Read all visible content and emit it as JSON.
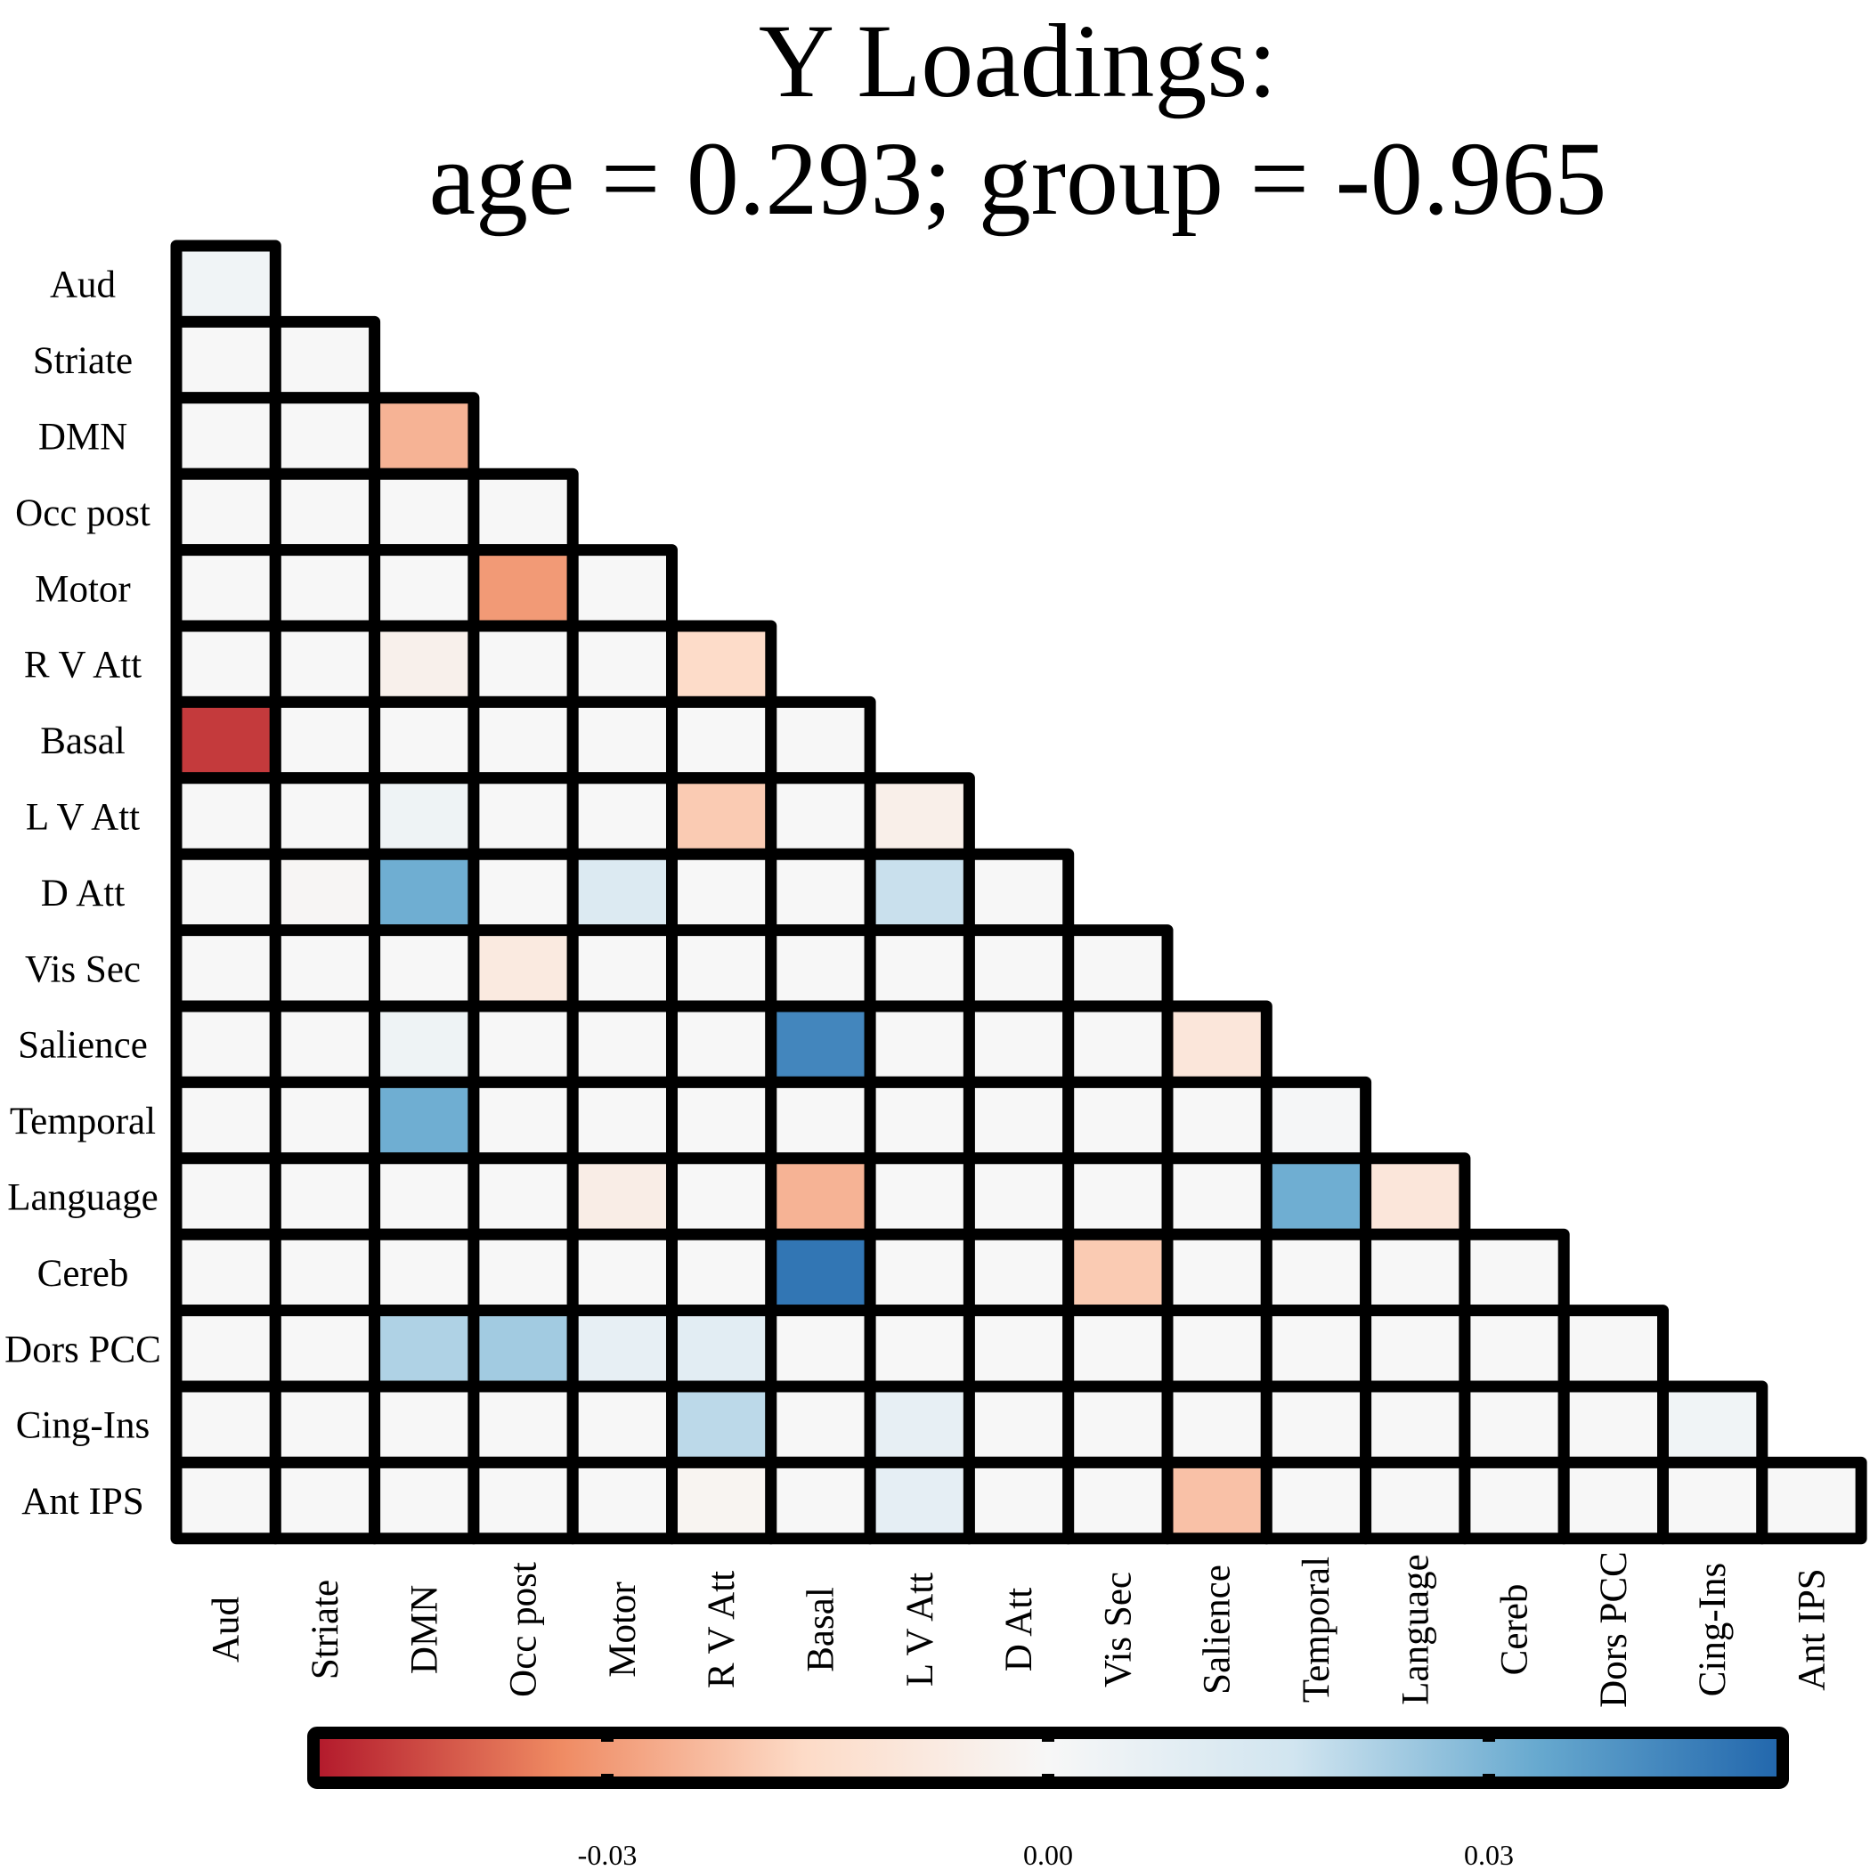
{
  "chart_data": {
    "type": "heatmap",
    "title": "Y Loadings:",
    "subtitle": "age = 0.293; group = -0.965",
    "networks": [
      "Aud",
      "Striate",
      "DMN",
      "Occ post",
      "Motor",
      "R V Att",
      "Basal",
      "L V Att",
      "D Att",
      "Vis Sec",
      "Salience",
      "Temporal",
      "Language",
      "Cereb",
      "Dors PCC",
      "Cing-Ins",
      "Ant IPS"
    ],
    "values": [
      [
        0.003
      ],
      [
        0,
        0
      ],
      [
        0,
        0,
        -0.025
      ],
      [
        0,
        0,
        0,
        0
      ],
      [
        0,
        0,
        0,
        -0.03,
        0
      ],
      [
        0,
        0,
        -0.004,
        0,
        0,
        -0.016
      ],
      [
        -0.045,
        0,
        0,
        0,
        0,
        0,
        0
      ],
      [
        0,
        0,
        0.004,
        0,
        0,
        -0.02,
        0,
        -0.005
      ],
      [
        0,
        -0.001,
        0.032,
        0,
        0.012,
        0,
        0,
        0.018,
        0
      ],
      [
        0,
        0,
        0,
        -0.008,
        0,
        0,
        0,
        0,
        0,
        0
      ],
      [
        0,
        0,
        0.004,
        0,
        0,
        0,
        0.042,
        0,
        0,
        0,
        -0.01
      ],
      [
        0,
        0,
        0.032,
        0,
        0,
        0,
        0,
        0,
        0,
        0,
        0,
        0.001
      ],
      [
        0,
        0,
        0,
        0,
        -0.006,
        0,
        -0.025,
        0,
        0,
        0,
        0,
        0.032,
        -0.01
      ],
      [
        0,
        0,
        0,
        0,
        0,
        0,
        0.046,
        0,
        0,
        -0.02,
        0,
        0,
        0,
        0
      ],
      [
        0,
        0,
        0.022,
        0.024,
        0.007,
        0.009,
        0,
        0,
        0,
        0,
        0,
        0,
        0,
        0,
        0
      ],
      [
        0,
        0,
        0,
        0,
        0,
        0.02,
        0,
        0.007,
        0,
        0,
        0,
        0,
        0,
        0,
        0,
        0.003
      ],
      [
        0,
        0,
        0,
        0,
        0,
        -0.002,
        0,
        0.008,
        0,
        0,
        -0.022,
        0,
        0,
        0,
        0,
        0,
        0
      ]
    ],
    "colorbar": {
      "ticks": [
        -0.03,
        0,
        0.03
      ],
      "tick_labels": [
        "-0.03",
        "0.00",
        "0.03"
      ],
      "range": [
        -0.05,
        0.05
      ],
      "colors": [
        "#b2182b",
        "#ef8a62",
        "#fddbc7",
        "#f7f7f7",
        "#d1e5f0",
        "#67a9cf",
        "#2166ac"
      ]
    }
  }
}
